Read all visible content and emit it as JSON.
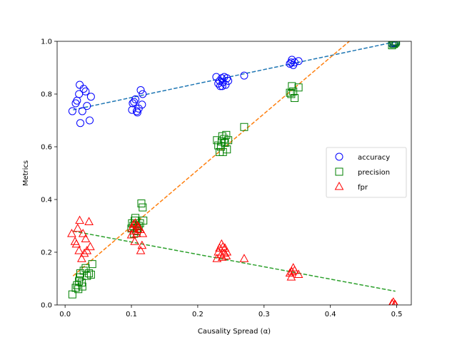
{
  "chart_data": {
    "type": "scatter",
    "title": "",
    "xlabel": "Causality Spread (α)",
    "ylabel": "Metrics",
    "xlim": [
      -0.012,
      0.522
    ],
    "ylim": [
      0.0,
      1.0
    ],
    "xticks": [
      0.0,
      0.1,
      0.2,
      0.3,
      0.4,
      0.5
    ],
    "xtick_labels": [
      "0.0",
      "0.1",
      "0.2",
      "0.3",
      "0.4",
      "0.5"
    ],
    "yticks": [
      0.0,
      0.2,
      0.4,
      0.6,
      0.8,
      1.0
    ],
    "ytick_labels": [
      "0.0",
      "0.2",
      "0.4",
      "0.6",
      "0.8",
      "1.0"
    ],
    "grid": false,
    "legend_position": "center-right",
    "series": [
      {
        "name": "accuracy",
        "marker": "circle",
        "color": "#0000ff",
        "points": [
          [
            0.011,
            0.735
          ],
          [
            0.016,
            0.765
          ],
          [
            0.018,
            0.775
          ],
          [
            0.021,
            0.8
          ],
          [
            0.022,
            0.835
          ],
          [
            0.023,
            0.69
          ],
          [
            0.026,
            0.735
          ],
          [
            0.028,
            0.82
          ],
          [
            0.031,
            0.81
          ],
          [
            0.033,
            0.755
          ],
          [
            0.037,
            0.7
          ],
          [
            0.039,
            0.79
          ],
          [
            0.101,
            0.74
          ],
          [
            0.102,
            0.765
          ],
          [
            0.104,
            0.77
          ],
          [
            0.106,
            0.78
          ],
          [
            0.108,
            0.735
          ],
          [
            0.109,
            0.73
          ],
          [
            0.111,
            0.745
          ],
          [
            0.114,
            0.815
          ],
          [
            0.116,
            0.76
          ],
          [
            0.117,
            0.8
          ],
          [
            0.228,
            0.865
          ],
          [
            0.231,
            0.84
          ],
          [
            0.233,
            0.85
          ],
          [
            0.234,
            0.83
          ],
          [
            0.236,
            0.86
          ],
          [
            0.237,
            0.83
          ],
          [
            0.238,
            0.845
          ],
          [
            0.24,
            0.865
          ],
          [
            0.242,
            0.835
          ],
          [
            0.244,
            0.86
          ],
          [
            0.246,
            0.85
          ],
          [
            0.27,
            0.87
          ],
          [
            0.339,
            0.915
          ],
          [
            0.341,
            0.92
          ],
          [
            0.342,
            0.93
          ],
          [
            0.344,
            0.91
          ],
          [
            0.346,
            0.92
          ],
          [
            0.352,
            0.925
          ],
          [
            0.493,
            0.99
          ],
          [
            0.495,
            0.992
          ],
          [
            0.496,
            0.995
          ],
          [
            0.498,
            0.997
          ],
          [
            0.499,
            0.993
          ]
        ],
        "trend": {
          "from": [
            0.012,
            0.74
          ],
          "to": [
            0.498,
            0.998
          ]
        }
      },
      {
        "name": "precision",
        "marker": "square",
        "color": "#008000",
        "points": [
          [
            0.011,
            0.04
          ],
          [
            0.016,
            0.065
          ],
          [
            0.018,
            0.075
          ],
          [
            0.02,
            0.06
          ],
          [
            0.021,
            0.09
          ],
          [
            0.022,
            0.105
          ],
          [
            0.023,
            0.12
          ],
          [
            0.025,
            0.085
          ],
          [
            0.026,
            0.07
          ],
          [
            0.028,
            0.13
          ],
          [
            0.031,
            0.14
          ],
          [
            0.033,
            0.11
          ],
          [
            0.036,
            0.12
          ],
          [
            0.039,
            0.115
          ],
          [
            0.041,
            0.155
          ],
          [
            0.1,
            0.29
          ],
          [
            0.101,
            0.31
          ],
          [
            0.103,
            0.3
          ],
          [
            0.104,
            0.27
          ],
          [
            0.105,
            0.32
          ],
          [
            0.106,
            0.33
          ],
          [
            0.108,
            0.28
          ],
          [
            0.109,
            0.29
          ],
          [
            0.111,
            0.3
          ],
          [
            0.113,
            0.31
          ],
          [
            0.115,
            0.385
          ],
          [
            0.117,
            0.37
          ],
          [
            0.118,
            0.32
          ],
          [
            0.229,
            0.625
          ],
          [
            0.231,
            0.605
          ],
          [
            0.233,
            0.58
          ],
          [
            0.235,
            0.6
          ],
          [
            0.236,
            0.62
          ],
          [
            0.237,
            0.64
          ],
          [
            0.238,
            0.58
          ],
          [
            0.24,
            0.63
          ],
          [
            0.241,
            0.615
          ],
          [
            0.243,
            0.645
          ],
          [
            0.244,
            0.59
          ],
          [
            0.246,
            0.625
          ],
          [
            0.27,
            0.675
          ],
          [
            0.339,
            0.805
          ],
          [
            0.341,
            0.8
          ],
          [
            0.342,
            0.83
          ],
          [
            0.344,
            0.81
          ],
          [
            0.346,
            0.785
          ],
          [
            0.352,
            0.825
          ],
          [
            0.493,
            0.985
          ],
          [
            0.495,
            0.99
          ],
          [
            0.496,
            0.99
          ],
          [
            0.498,
            0.995
          ],
          [
            0.499,
            1.0
          ]
        ],
        "trend": {
          "from": [
            0.012,
            0.11
          ],
          "to": [
            0.4285,
            1.0
          ]
        }
      },
      {
        "name": "fpr",
        "marker": "triangle",
        "color": "#ff0000",
        "points": [
          [
            0.01,
            0.27
          ],
          [
            0.015,
            0.24
          ],
          [
            0.017,
            0.23
          ],
          [
            0.019,
            0.29
          ],
          [
            0.021,
            0.205
          ],
          [
            0.022,
            0.32
          ],
          [
            0.025,
            0.175
          ],
          [
            0.027,
            0.27
          ],
          [
            0.029,
            0.195
          ],
          [
            0.031,
            0.25
          ],
          [
            0.033,
            0.205
          ],
          [
            0.036,
            0.315
          ],
          [
            0.038,
            0.22
          ],
          [
            0.1,
            0.265
          ],
          [
            0.101,
            0.29
          ],
          [
            0.103,
            0.305
          ],
          [
            0.104,
            0.28
          ],
          [
            0.105,
            0.24
          ],
          [
            0.106,
            0.31
          ],
          [
            0.108,
            0.27
          ],
          [
            0.109,
            0.3
          ],
          [
            0.111,
            0.295
          ],
          [
            0.113,
            0.285
          ],
          [
            0.114,
            0.205
          ],
          [
            0.116,
            0.225
          ],
          [
            0.117,
            0.27
          ],
          [
            0.229,
            0.175
          ],
          [
            0.231,
            0.2
          ],
          [
            0.233,
            0.215
          ],
          [
            0.235,
            0.19
          ],
          [
            0.236,
            0.23
          ],
          [
            0.237,
            0.18
          ],
          [
            0.238,
            0.22
          ],
          [
            0.24,
            0.195
          ],
          [
            0.241,
            0.215
          ],
          [
            0.243,
            0.185
          ],
          [
            0.244,
            0.2
          ],
          [
            0.27,
            0.175
          ],
          [
            0.339,
            0.12
          ],
          [
            0.341,
            0.105
          ],
          [
            0.342,
            0.125
          ],
          [
            0.344,
            0.14
          ],
          [
            0.346,
            0.13
          ],
          [
            0.352,
            0.115
          ],
          [
            0.493,
            0.005
          ],
          [
            0.495,
            0.01
          ],
          [
            0.497,
            0.002
          ],
          [
            0.498,
            0.0
          ]
        ],
        "trend": {
          "from": [
            0.012,
            0.28
          ],
          "to": [
            0.498,
            0.052
          ]
        }
      }
    ]
  },
  "colors": {
    "trend_accuracy": "#1f77b4",
    "trend_precision": "#ff7f0e",
    "trend_fpr": "#2ca02c"
  }
}
